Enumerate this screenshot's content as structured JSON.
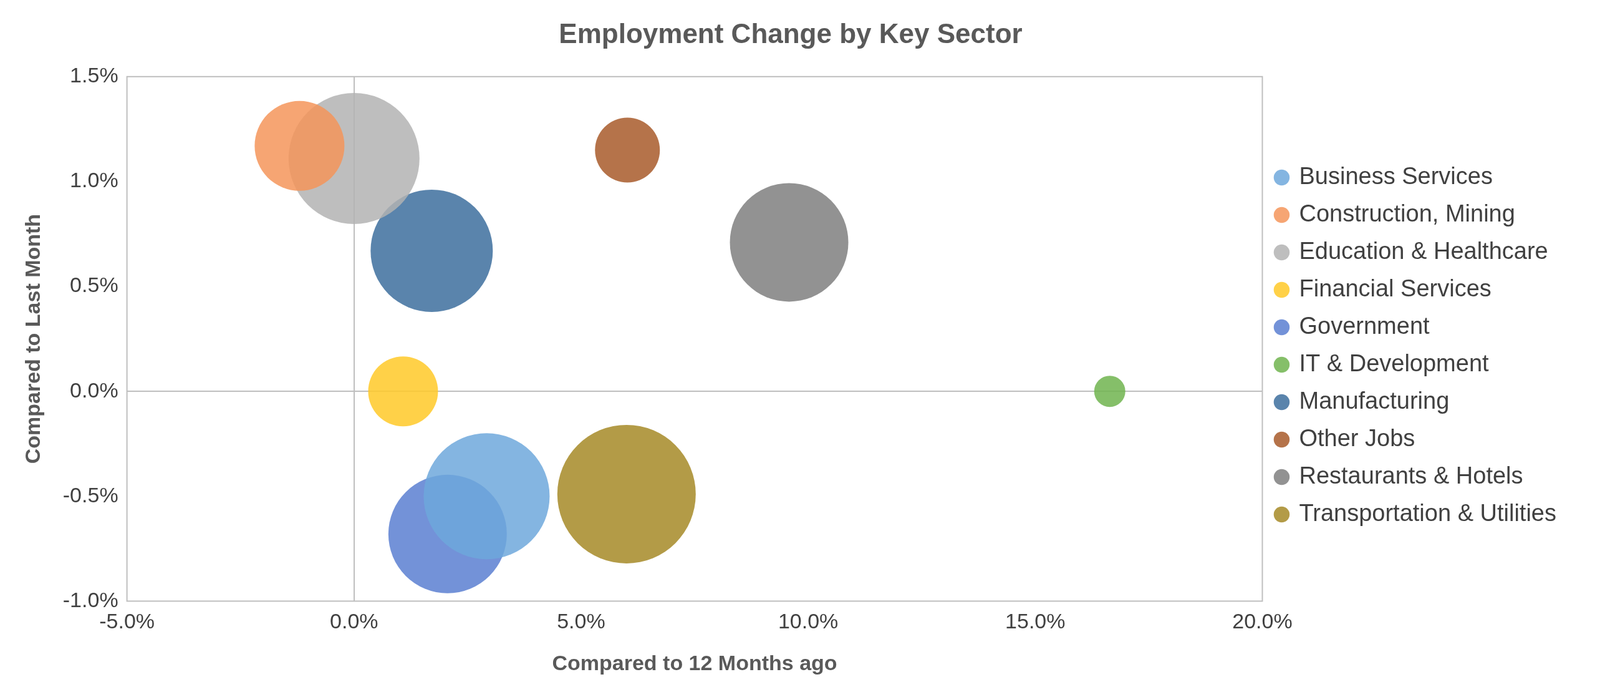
{
  "chart_data": {
    "type": "bubble",
    "title": "Employment Change by Key Sector",
    "x_label": "Compared to 12 Months ago",
    "y_label": "Compared to Last Month",
    "xlim": [
      -5,
      20
    ],
    "ylim": [
      -1,
      1.5
    ],
    "xticks": [
      {
        "value": -5,
        "label": "-5.0%"
      },
      {
        "value": 0,
        "label": "0.0%"
      },
      {
        "value": 5,
        "label": "5.0%"
      },
      {
        "value": 10,
        "label": "10.0%"
      },
      {
        "value": 15,
        "label": "15.0%"
      },
      {
        "value": 20,
        "label": "20.0%"
      }
    ],
    "yticks": [
      {
        "value": -1,
        "label": "-1.0%"
      },
      {
        "value": -0.5,
        "label": "-0.5%"
      },
      {
        "value": 0,
        "label": "0.0%"
      },
      {
        "value": 0.5,
        "label": "0.5%"
      },
      {
        "value": 1,
        "label": "1.0%"
      },
      {
        "value": 1.5,
        "label": "1.5%"
      }
    ],
    "grid": false,
    "legend": "right",
    "series": [
      {
        "name": "Business Services",
        "color": "#6fa8dc",
        "x": [
          2.92
        ],
        "values": [
          -0.5
        ],
        "sizes": [
          101
        ]
      },
      {
        "name": "Construction, Mining",
        "color": "#f4955a",
        "x": [
          -1.2
        ],
        "values": [
          1.17
        ],
        "sizes": [
          72
        ]
      },
      {
        "name": "Education & Healthcare",
        "color": "#b3b3b3",
        "x": [
          0.0
        ],
        "values": [
          1.11
        ],
        "sizes": [
          105
        ]
      },
      {
        "name": "Financial Services",
        "color": "#ffc928",
        "x": [
          1.08
        ],
        "values": [
          0.0
        ],
        "sizes": [
          56
        ]
      },
      {
        "name": "Government",
        "color": "#5b7fd1",
        "x": [
          2.06
        ],
        "values": [
          -0.68
        ],
        "sizes": [
          95
        ]
      },
      {
        "name": "IT & Development",
        "color": "#70b44f",
        "x": [
          16.64
        ],
        "values": [
          0.0
        ],
        "sizes": [
          25
        ]
      },
      {
        "name": "Manufacturing",
        "color": "#3d6e9e",
        "x": [
          1.71
        ],
        "values": [
          0.67
        ],
        "sizes": [
          98
        ]
      },
      {
        "name": "Other Jobs",
        "color": "#a85a2a",
        "x": [
          6.02
        ],
        "values": [
          1.15
        ],
        "sizes": [
          52
        ]
      },
      {
        "name": "Restaurants & Hotels",
        "color": "#7f7f7f",
        "x": [
          9.58
        ],
        "values": [
          0.71
        ],
        "sizes": [
          95
        ]
      },
      {
        "name": "Transportation & Utilities",
        "color": "#a68a27",
        "x": [
          6.0
        ],
        "values": [
          -0.49
        ],
        "sizes": [
          111
        ]
      }
    ]
  }
}
